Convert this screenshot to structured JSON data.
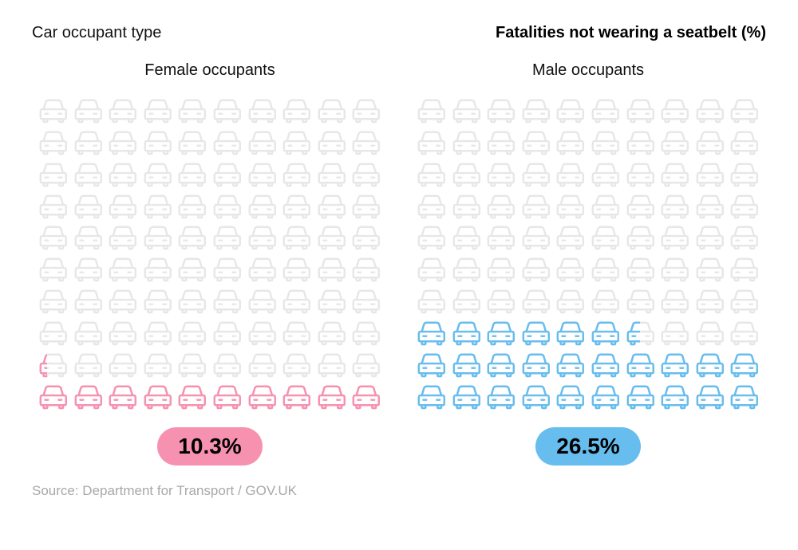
{
  "header": {
    "left": "Car occupant type",
    "right": "Fatalities not wearing a seatbelt (%)"
  },
  "chart": {
    "type": "pictogram",
    "rows": 10,
    "cols": 10,
    "fill_direction": "bottom-left-to-right",
    "icon": "car",
    "background_color": "#ffffff",
    "inactive_icon_color": "#e7e7e7",
    "panels": [
      {
        "label": "Female occupants",
        "value": 10.3,
        "value_text": "10.3%",
        "icon_color": "#f791b0",
        "badge_bg": "#f791b0",
        "badge_text_color": "#000000"
      },
      {
        "label": "Male occupants",
        "value": 26.5,
        "value_text": "26.5%",
        "icon_color": "#66bdee",
        "badge_bg": "#66bdee",
        "badge_text_color": "#000000"
      }
    ]
  },
  "typography": {
    "title_fontsize": 20,
    "panel_title_fontsize": 20,
    "badge_fontsize": 28,
    "source_fontsize": 17
  },
  "source": "Source: Department for Transport / GOV.UK"
}
